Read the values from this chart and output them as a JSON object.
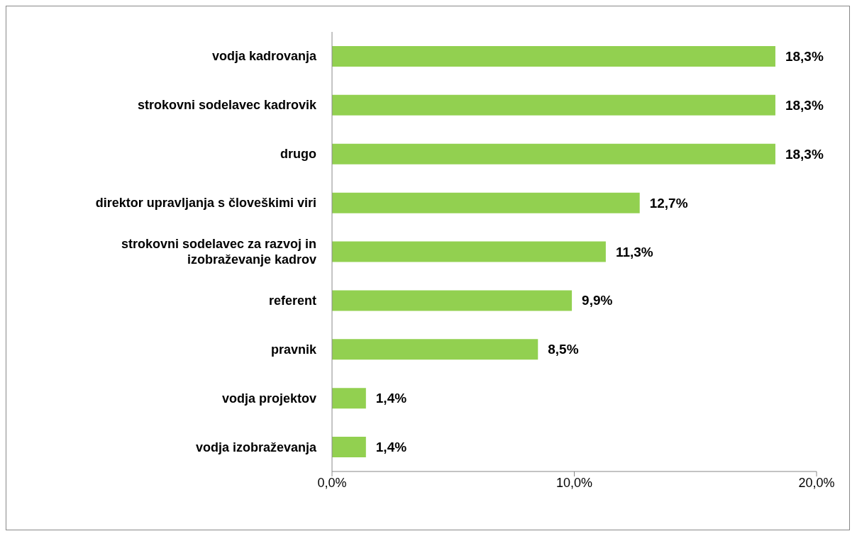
{
  "chart_data": {
    "type": "bar",
    "orientation": "horizontal",
    "categories": [
      "vodja kadrovanja",
      "strokovni sodelavec kadrovik",
      "drugo",
      "direktor upravljanja s človeškimi viri",
      "strokovni sodelavec za razvoj in izobraževanje kadrov",
      "referent",
      "pravnik",
      "vodja projektov",
      "vodja izobraževanja"
    ],
    "values": [
      18.3,
      18.3,
      18.3,
      12.7,
      11.3,
      9.9,
      8.5,
      1.4,
      1.4
    ],
    "value_labels": [
      "18,3%",
      "18,3%",
      "18,3%",
      "12,7%",
      "11,3%",
      "9,9%",
      "8,5%",
      "1,4%",
      "1,4%"
    ],
    "color": "#92d050",
    "xlim": [
      0,
      20
    ],
    "xticks": [
      {
        "value": 0,
        "label": "0,0%"
      },
      {
        "value": 10,
        "label": "10,0%"
      },
      {
        "value": 20,
        "label": "20,0%"
      }
    ],
    "grid": false
  }
}
